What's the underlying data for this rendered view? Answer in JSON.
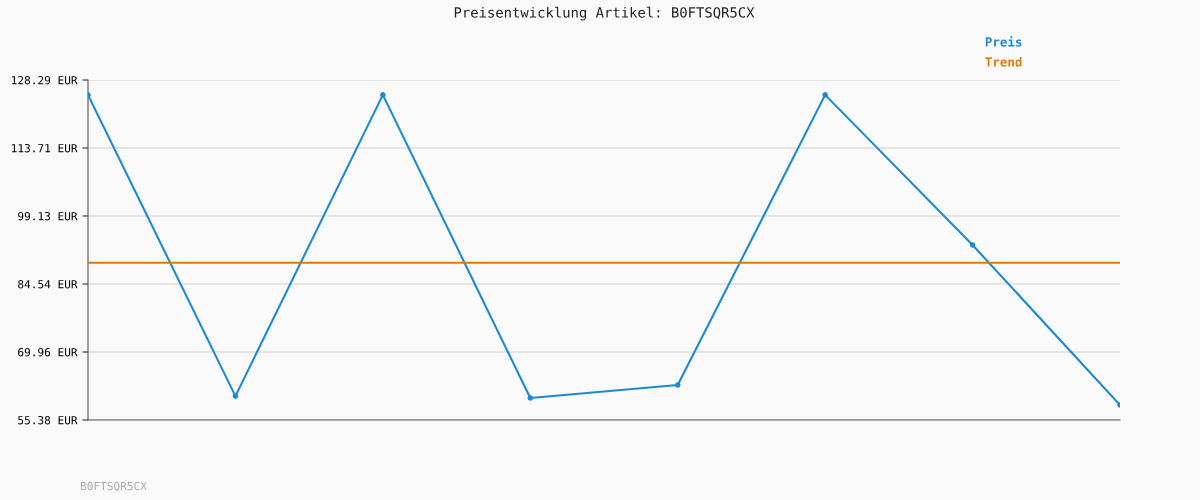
{
  "chart_data": {
    "type": "line",
    "title": "Preisentwicklung Artikel: B0FTSQR5CX",
    "categories": [
      null,
      null,
      null,
      null,
      null,
      null,
      null,
      null
    ],
    "series": [
      {
        "name": "Preis",
        "color": "#1f88d0",
        "values": [
          125.1,
          60.5,
          125.1,
          60.1,
          62.9,
          125.1,
          92.9,
          58.6
        ],
        "marker": "circle"
      },
      {
        "name": "Trend",
        "color": "#dd7a0a",
        "values": [
          89.1,
          89.1,
          89.1,
          89.1,
          89.1,
          89.1,
          89.1,
          89.1
        ],
        "marker": "none"
      }
    ],
    "ylim": [
      55.38,
      128.29
    ],
    "yticks": [
      {
        "value": 55.38,
        "label": "55.38 EUR"
      },
      {
        "value": 69.96,
        "label": "69.96 EUR"
      },
      {
        "value": 84.54,
        "label": "84.54 EUR"
      },
      {
        "value": 99.13,
        "label": "99.13 EUR"
      },
      {
        "value": 113.71,
        "label": "113.71 EUR"
      },
      {
        "value": 128.29,
        "label": "128.29 EUR"
      }
    ],
    "grid": "y",
    "legend": "top right",
    "tick_labels": "y",
    "annotations": [
      "B0FTSQR5CX"
    ]
  }
}
